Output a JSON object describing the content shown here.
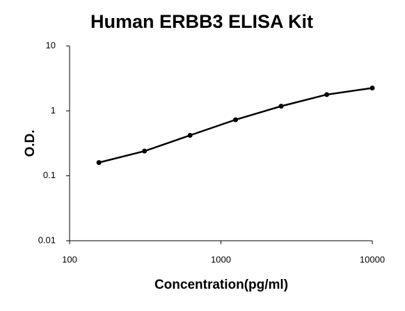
{
  "chart_data": {
    "type": "line",
    "title": "Human ERBB3 ELISA Kit",
    "x_label": "Concentration(pg/ml)",
    "y_label": "O.D.",
    "x": [
      156.25,
      312.5,
      625,
      1250,
      2500,
      5000,
      10000
    ],
    "series": [
      {
        "name": "O.D.",
        "color": "#000000",
        "values": [
          0.16,
          0.24,
          0.42,
          0.73,
          1.18,
          1.78,
          2.25
        ]
      }
    ],
    "xlim": [
      100,
      10000
    ],
    "ylim": [
      0.01,
      10
    ],
    "xticks": [
      100,
      1000,
      10000
    ],
    "yticks": [
      0.01,
      0.1,
      1,
      10
    ],
    "xscale": "log",
    "yscale": "log",
    "grid": false
  }
}
